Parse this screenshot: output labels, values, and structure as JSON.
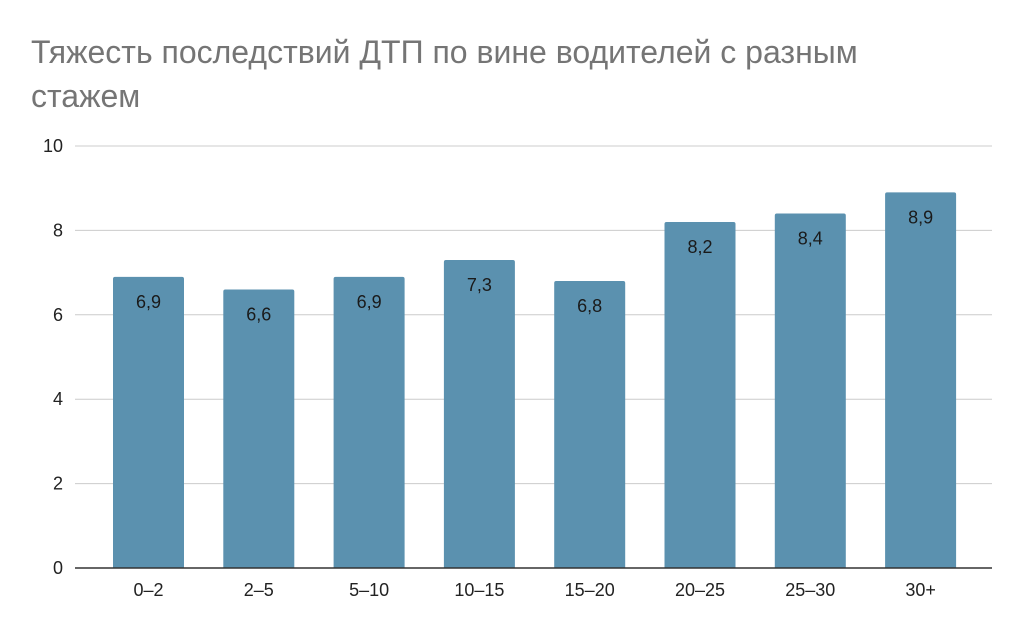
{
  "chart_data": {
    "type": "bar",
    "title": "Тяжесть последствий ДТП по вине водителей с разным стажем",
    "xlabel": "",
    "ylabel": "",
    "categories": [
      "0–2",
      "2–5",
      "5–10",
      "10–15",
      "15–20",
      "20–25",
      "25–30",
      "30+"
    ],
    "values": [
      6.9,
      6.6,
      6.9,
      7.3,
      6.8,
      8.2,
      8.4,
      8.9
    ],
    "data_labels": [
      "6,9",
      "6,6",
      "6,9",
      "7,3",
      "6,8",
      "8,2",
      "8,4",
      "8,9"
    ],
    "ylim": [
      0,
      10
    ],
    "yticks": [
      0,
      2,
      4,
      6,
      8,
      10
    ],
    "grid": true,
    "legend": "none",
    "bar_color": "#5b91af",
    "grid_color": "#cccccc",
    "axis_color": "#333333",
    "title_color": "#757575"
  }
}
